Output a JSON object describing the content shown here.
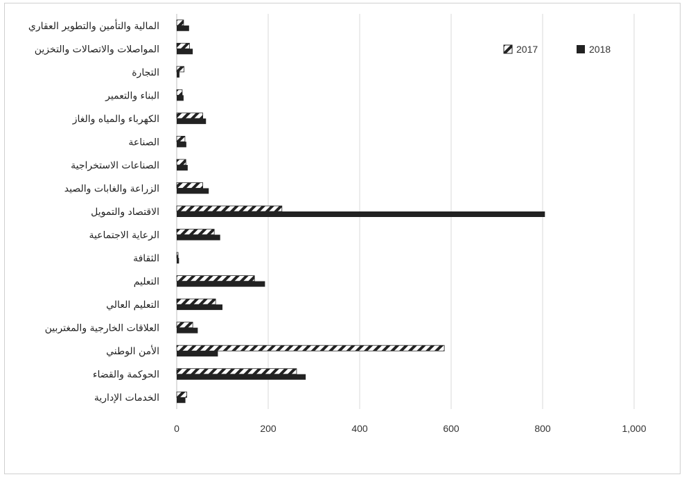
{
  "chart_data": {
    "type": "bar",
    "orientation": "horizontal",
    "categories": [
      "المالية والتأمين والتطوير العقاري",
      "المواصلات والاتصالات والتخزين",
      "التجارة",
      "البناء والتعمير",
      "الكهرباء والمياه والغاز",
      "الصناعة",
      "الصناعات الاستخراجية",
      "الزراعة والغابات والصيد",
      "الاقتصاد والتمويل",
      "الرعاية الاجتماعية",
      "الثقافة",
      "التعليم",
      "التعليم العالي",
      "العلاقات الخارجية والمغتربين",
      "الأمن الوطني",
      "الحوكمة والقضاء",
      "الخدمات الإدارية"
    ],
    "series": [
      {
        "name": "2017",
        "pattern": "hatched",
        "color": "#222222",
        "values": [
          15,
          28,
          16,
          12,
          57,
          18,
          20,
          57,
          230,
          82,
          3,
          170,
          85,
          35,
          585,
          262,
          22
        ]
      },
      {
        "name": "2018",
        "pattern": "solid",
        "color": "#222222",
        "values": [
          27,
          35,
          6,
          15,
          64,
          21,
          24,
          70,
          805,
          95,
          5,
          193,
          100,
          46,
          90,
          282,
          19
        ]
      }
    ],
    "x_ticks": [
      "0",
      "200",
      "400",
      "600",
      "800",
      "1,000"
    ],
    "xlim": [
      0,
      1000
    ],
    "grid": true,
    "legend_position": "top-right",
    "title": "",
    "xlabel": "",
    "ylabel": ""
  }
}
